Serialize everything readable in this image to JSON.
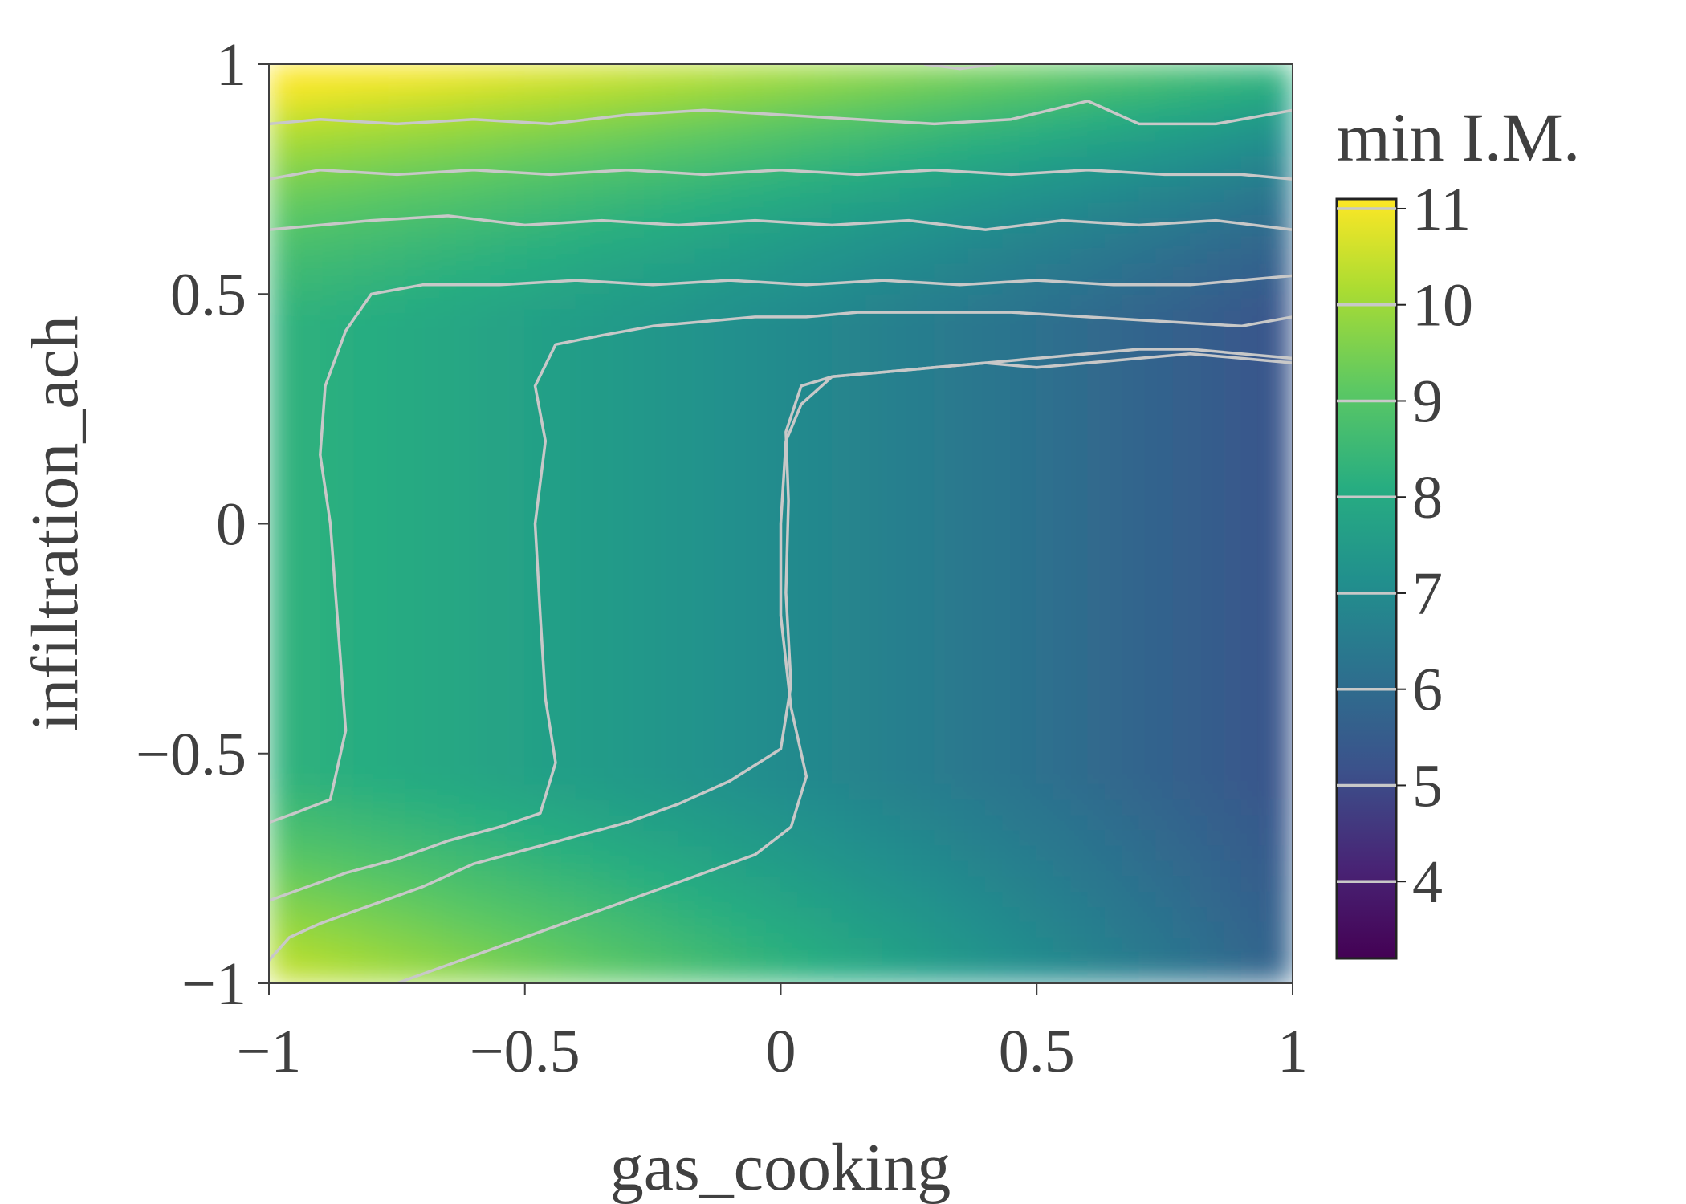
{
  "chart_data": {
    "type": "heatmap",
    "title": "",
    "xlabel": "gas_cooking",
    "ylabel": "infiltration_ach",
    "xlim": [
      -1,
      1
    ],
    "ylim": [
      -1,
      1
    ],
    "x_ticks": [
      -1,
      -0.5,
      0,
      0.5,
      1
    ],
    "x_tick_labels": [
      "−1",
      "−0.5",
      "0",
      "0.5",
      "1"
    ],
    "y_ticks": [
      -1,
      -0.5,
      0,
      0.5,
      1
    ],
    "y_tick_labels": [
      "−1",
      "−0.5",
      "0",
      "0.5",
      "1"
    ],
    "colorbar": {
      "title": "min I.M.",
      "min": 3.2,
      "max": 11.1,
      "ticks": [
        4,
        5,
        6,
        7,
        8,
        9,
        10,
        11
      ],
      "tick_labels": [
        "4",
        "5",
        "6",
        "7",
        "8",
        "9",
        "10",
        "11"
      ],
      "colormap": "viridis"
    },
    "contour_levels": [
      4,
      5,
      6,
      7,
      8,
      9,
      10,
      11
    ],
    "contour_color": "#c8c8c8",
    "grid": false,
    "contours": [
      {
        "level": 4,
        "points": [
          [
            -1,
            -0.95
          ],
          [
            -0.96,
            -0.9
          ],
          [
            -0.9,
            -0.87
          ],
          [
            -0.8,
            -0.83
          ],
          [
            -0.7,
            -0.79
          ],
          [
            -0.6,
            -0.74
          ],
          [
            -0.5,
            -0.71
          ],
          [
            -0.4,
            -0.68
          ],
          [
            -0.3,
            -0.65
          ],
          [
            -0.2,
            -0.61
          ],
          [
            -0.1,
            -0.56
          ],
          [
            0,
            -0.49
          ],
          [
            0.02,
            -0.35
          ],
          [
            0.01,
            -0.15
          ],
          [
            0.015,
            0.05
          ],
          [
            0.01,
            0.2
          ],
          [
            0.04,
            0.3
          ],
          [
            0.1,
            0.32
          ],
          [
            0.2,
            0.33
          ],
          [
            0.3,
            0.34
          ],
          [
            0.4,
            0.35
          ],
          [
            0.5,
            0.34
          ],
          [
            0.6,
            0.35
          ],
          [
            0.7,
            0.36
          ],
          [
            0.8,
            0.37
          ],
          [
            0.9,
            0.36
          ],
          [
            1,
            0.35
          ]
        ]
      },
      {
        "level": 5,
        "points": [
          [
            -0.75,
            -1
          ],
          [
            -0.65,
            -0.96
          ],
          [
            -0.55,
            -0.92
          ],
          [
            -0.45,
            -0.88
          ],
          [
            -0.35,
            -0.84
          ],
          [
            -0.25,
            -0.8
          ],
          [
            -0.15,
            -0.76
          ],
          [
            -0.05,
            -0.72
          ],
          [
            0.02,
            -0.66
          ],
          [
            0.05,
            -0.55
          ],
          [
            0.02,
            -0.4
          ],
          [
            0.0,
            -0.2
          ],
          [
            0.0,
            0.0
          ],
          [
            0.01,
            0.18
          ],
          [
            0.04,
            0.26
          ],
          [
            0.1,
            0.32
          ],
          [
            0.2,
            0.33
          ],
          [
            0.3,
            0.34
          ],
          [
            0.4,
            0.35
          ],
          [
            0.5,
            0.36
          ],
          [
            0.6,
            0.37
          ],
          [
            0.7,
            0.38
          ],
          [
            0.8,
            0.38
          ],
          [
            0.9,
            0.37
          ],
          [
            1,
            0.36
          ]
        ]
      },
      {
        "level": 6,
        "points": [
          [
            -1,
            -0.82
          ],
          [
            -0.95,
            -0.8
          ],
          [
            -0.85,
            -0.76
          ],
          [
            -0.75,
            -0.73
          ],
          [
            -0.65,
            -0.69
          ],
          [
            -0.55,
            -0.66
          ],
          [
            -0.47,
            -0.63
          ],
          [
            -0.44,
            -0.52
          ],
          [
            -0.46,
            -0.38
          ],
          [
            -0.47,
            -0.2
          ],
          [
            -0.48,
            0.0
          ],
          [
            -0.46,
            0.18
          ],
          [
            -0.48,
            0.3
          ],
          [
            -0.44,
            0.39
          ],
          [
            -0.35,
            0.41
          ],
          [
            -0.25,
            0.43
          ],
          [
            -0.15,
            0.44
          ],
          [
            -0.05,
            0.45
          ],
          [
            0.05,
            0.45
          ],
          [
            0.15,
            0.46
          ],
          [
            0.3,
            0.46
          ],
          [
            0.45,
            0.46
          ],
          [
            0.6,
            0.45
          ],
          [
            0.75,
            0.44
          ],
          [
            0.9,
            0.43
          ],
          [
            1,
            0.45
          ]
        ]
      },
      {
        "level": 7,
        "points": [
          [
            -1,
            -0.65
          ],
          [
            -0.95,
            -0.63
          ],
          [
            -0.88,
            -0.6
          ],
          [
            -0.85,
            -0.45
          ],
          [
            -0.86,
            -0.3
          ],
          [
            -0.87,
            -0.15
          ],
          [
            -0.88,
            0.0
          ],
          [
            -0.9,
            0.15
          ],
          [
            -0.89,
            0.3
          ],
          [
            -0.85,
            0.42
          ],
          [
            -0.8,
            0.5
          ],
          [
            -0.7,
            0.52
          ],
          [
            -0.55,
            0.52
          ],
          [
            -0.4,
            0.53
          ],
          [
            -0.25,
            0.52
          ],
          [
            -0.1,
            0.53
          ],
          [
            0.05,
            0.52
          ],
          [
            0.2,
            0.53
          ],
          [
            0.35,
            0.52
          ],
          [
            0.5,
            0.53
          ],
          [
            0.65,
            0.52
          ],
          [
            0.8,
            0.52
          ],
          [
            0.9,
            0.53
          ],
          [
            1,
            0.54
          ]
        ]
      },
      {
        "level": 8,
        "points": [
          [
            -1,
            0.64
          ],
          [
            -0.9,
            0.65
          ],
          [
            -0.8,
            0.66
          ],
          [
            -0.65,
            0.67
          ],
          [
            -0.5,
            0.65
          ],
          [
            -0.35,
            0.66
          ],
          [
            -0.2,
            0.65
          ],
          [
            -0.05,
            0.66
          ],
          [
            0.1,
            0.65
          ],
          [
            0.25,
            0.66
          ],
          [
            0.4,
            0.64
          ],
          [
            0.55,
            0.66
          ],
          [
            0.7,
            0.65
          ],
          [
            0.85,
            0.66
          ],
          [
            1,
            0.64
          ]
        ]
      },
      {
        "level": 9,
        "points": [
          [
            -1,
            0.75
          ],
          [
            -0.9,
            0.77
          ],
          [
            -0.75,
            0.76
          ],
          [
            -0.6,
            0.77
          ],
          [
            -0.45,
            0.76
          ],
          [
            -0.3,
            0.77
          ],
          [
            -0.15,
            0.76
          ],
          [
            0.0,
            0.77
          ],
          [
            0.15,
            0.76
          ],
          [
            0.3,
            0.77
          ],
          [
            0.45,
            0.76
          ],
          [
            0.6,
            0.77
          ],
          [
            0.75,
            0.76
          ],
          [
            0.9,
            0.76
          ],
          [
            1,
            0.75
          ]
        ]
      },
      {
        "level": 10,
        "points": [
          [
            -1,
            0.87
          ],
          [
            -0.9,
            0.88
          ],
          [
            -0.75,
            0.87
          ],
          [
            -0.6,
            0.88
          ],
          [
            -0.45,
            0.87
          ],
          [
            -0.3,
            0.89
          ],
          [
            -0.15,
            0.9
          ],
          [
            0.0,
            0.89
          ],
          [
            0.15,
            0.88
          ],
          [
            0.3,
            0.87
          ],
          [
            0.45,
            0.88
          ],
          [
            0.6,
            0.92
          ],
          [
            0.7,
            0.87
          ],
          [
            0.85,
            0.87
          ],
          [
            1,
            0.9
          ]
        ]
      },
      {
        "level": 11,
        "points": [
          [
            0.28,
            1
          ],
          [
            0.35,
            0.99
          ],
          [
            0.42,
            1
          ]
        ]
      }
    ]
  }
}
